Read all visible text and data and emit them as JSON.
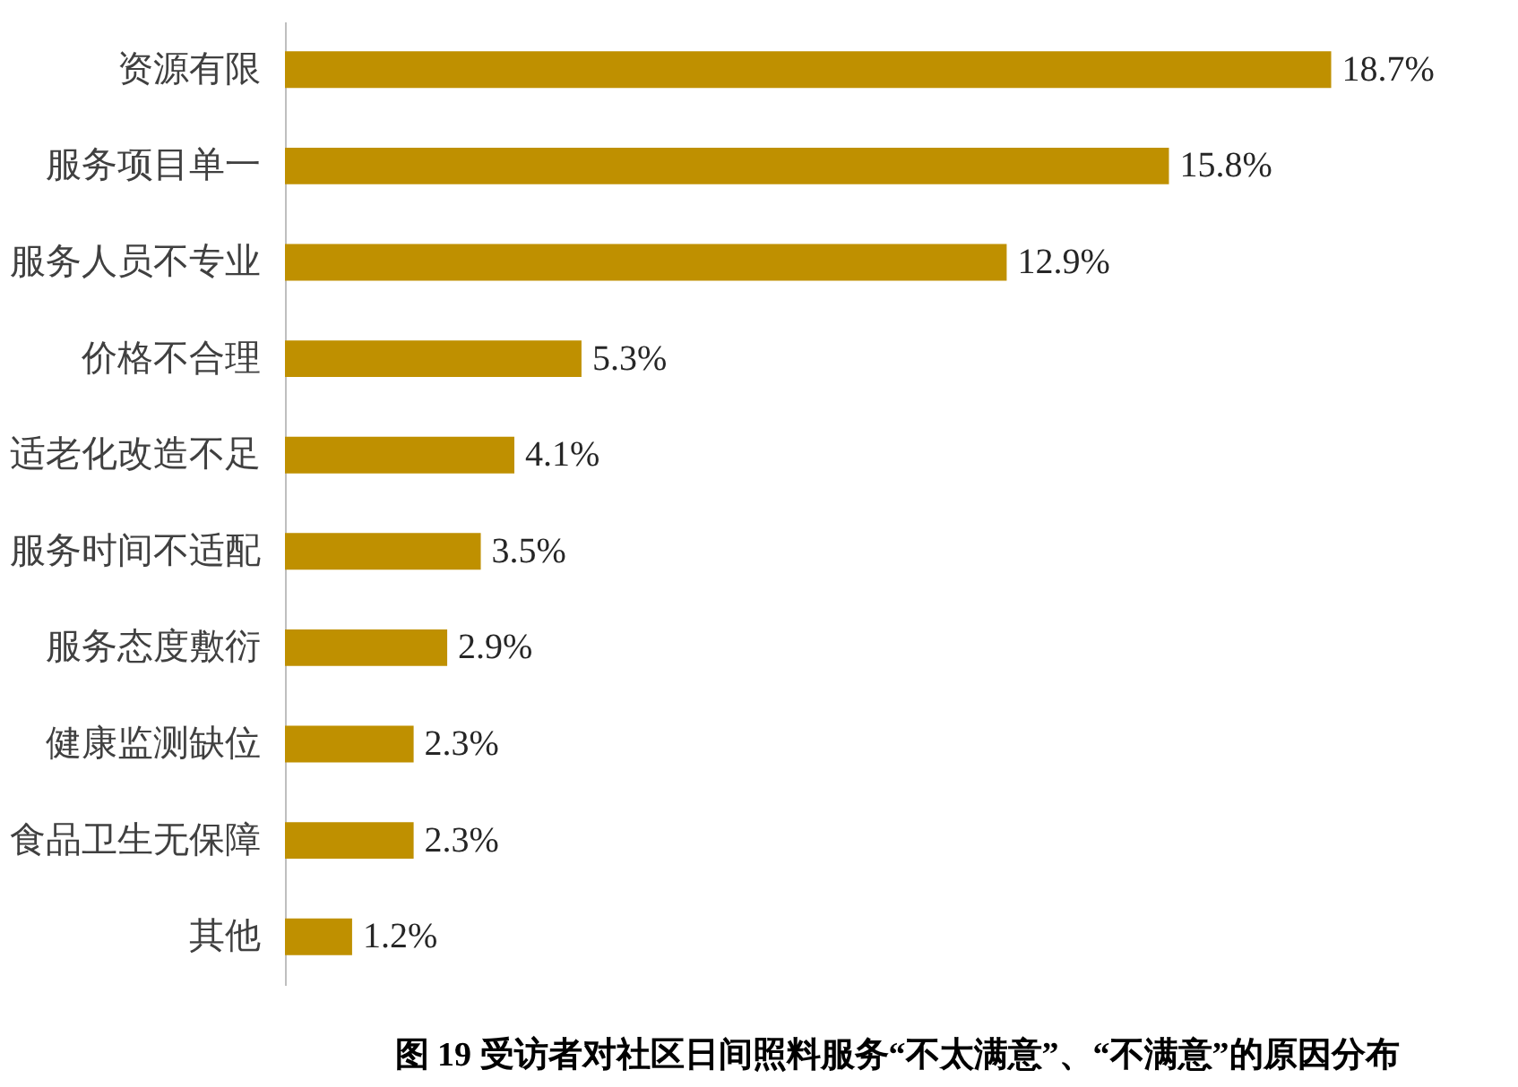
{
  "chart_data": {
    "type": "bar",
    "orientation": "horizontal",
    "title": "图 19  受访者对社区日间照料服务“不太满意”、“不满意”的原因分布",
    "categories": [
      "资源有限",
      "服务项目单一",
      "服务人员不专业",
      "价格不合理",
      "适老化改造不足",
      "服务时间不适配",
      "服务态度敷衍",
      "健康监测缺位",
      "食品卫生无保障",
      "其他"
    ],
    "values": [
      18.7,
      15.8,
      12.9,
      5.3,
      4.1,
      3.5,
      2.9,
      2.3,
      2.3,
      1.2
    ],
    "value_labels": [
      "18.7%",
      "15.8%",
      "12.9%",
      "5.3%",
      "4.1%",
      "3.5%",
      "2.9%",
      "2.3%",
      "2.3%",
      "1.2%"
    ],
    "color": "#bf9000",
    "tick_labels": "y"
  }
}
